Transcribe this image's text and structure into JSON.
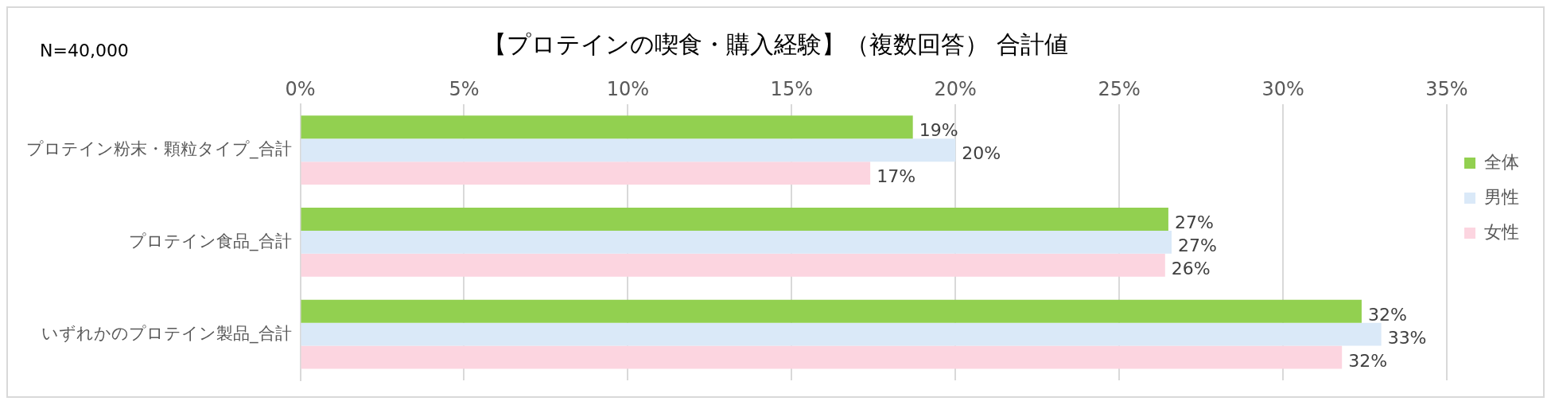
{
  "chart_data": {
    "type": "bar",
    "orientation": "horizontal",
    "title": "【プロテインの喫食・購入経験】（複数回答） 合計値",
    "annotations": [
      "N=40,000"
    ],
    "categories": [
      "プロテイン粉末・顆粒タイプ_合計",
      "プロテイン食品_合計",
      "いずれかのプロテイン製品_合計"
    ],
    "series": [
      {
        "name": "全体",
        "color": "#92d050",
        "values": [
          18.7,
          26.5,
          32.4
        ],
        "value_labels": [
          "19%",
          "27%",
          "32%"
        ]
      },
      {
        "name": "男性",
        "color": "#dae9f8",
        "values": [
          20.0,
          26.6,
          33.0
        ],
        "value_labels": [
          "20%",
          "27%",
          "33%"
        ]
      },
      {
        "name": "女性",
        "color": "#fcd5e0",
        "values": [
          17.4,
          26.4,
          31.8
        ],
        "value_labels": [
          "17%",
          "26%",
          "32%"
        ]
      }
    ],
    "xlim": [
      0,
      35
    ],
    "xticks": [
      {
        "value": 0,
        "label": "0%"
      },
      {
        "value": 5,
        "label": "5%"
      },
      {
        "value": 10,
        "label": "10%"
      },
      {
        "value": 15,
        "label": "15%"
      },
      {
        "value": 20,
        "label": "20%"
      },
      {
        "value": 25,
        "label": "25%"
      },
      {
        "value": 30,
        "label": "30%"
      },
      {
        "value": 35,
        "label": "35%"
      }
    ],
    "grid": "x",
    "legend": "right"
  }
}
